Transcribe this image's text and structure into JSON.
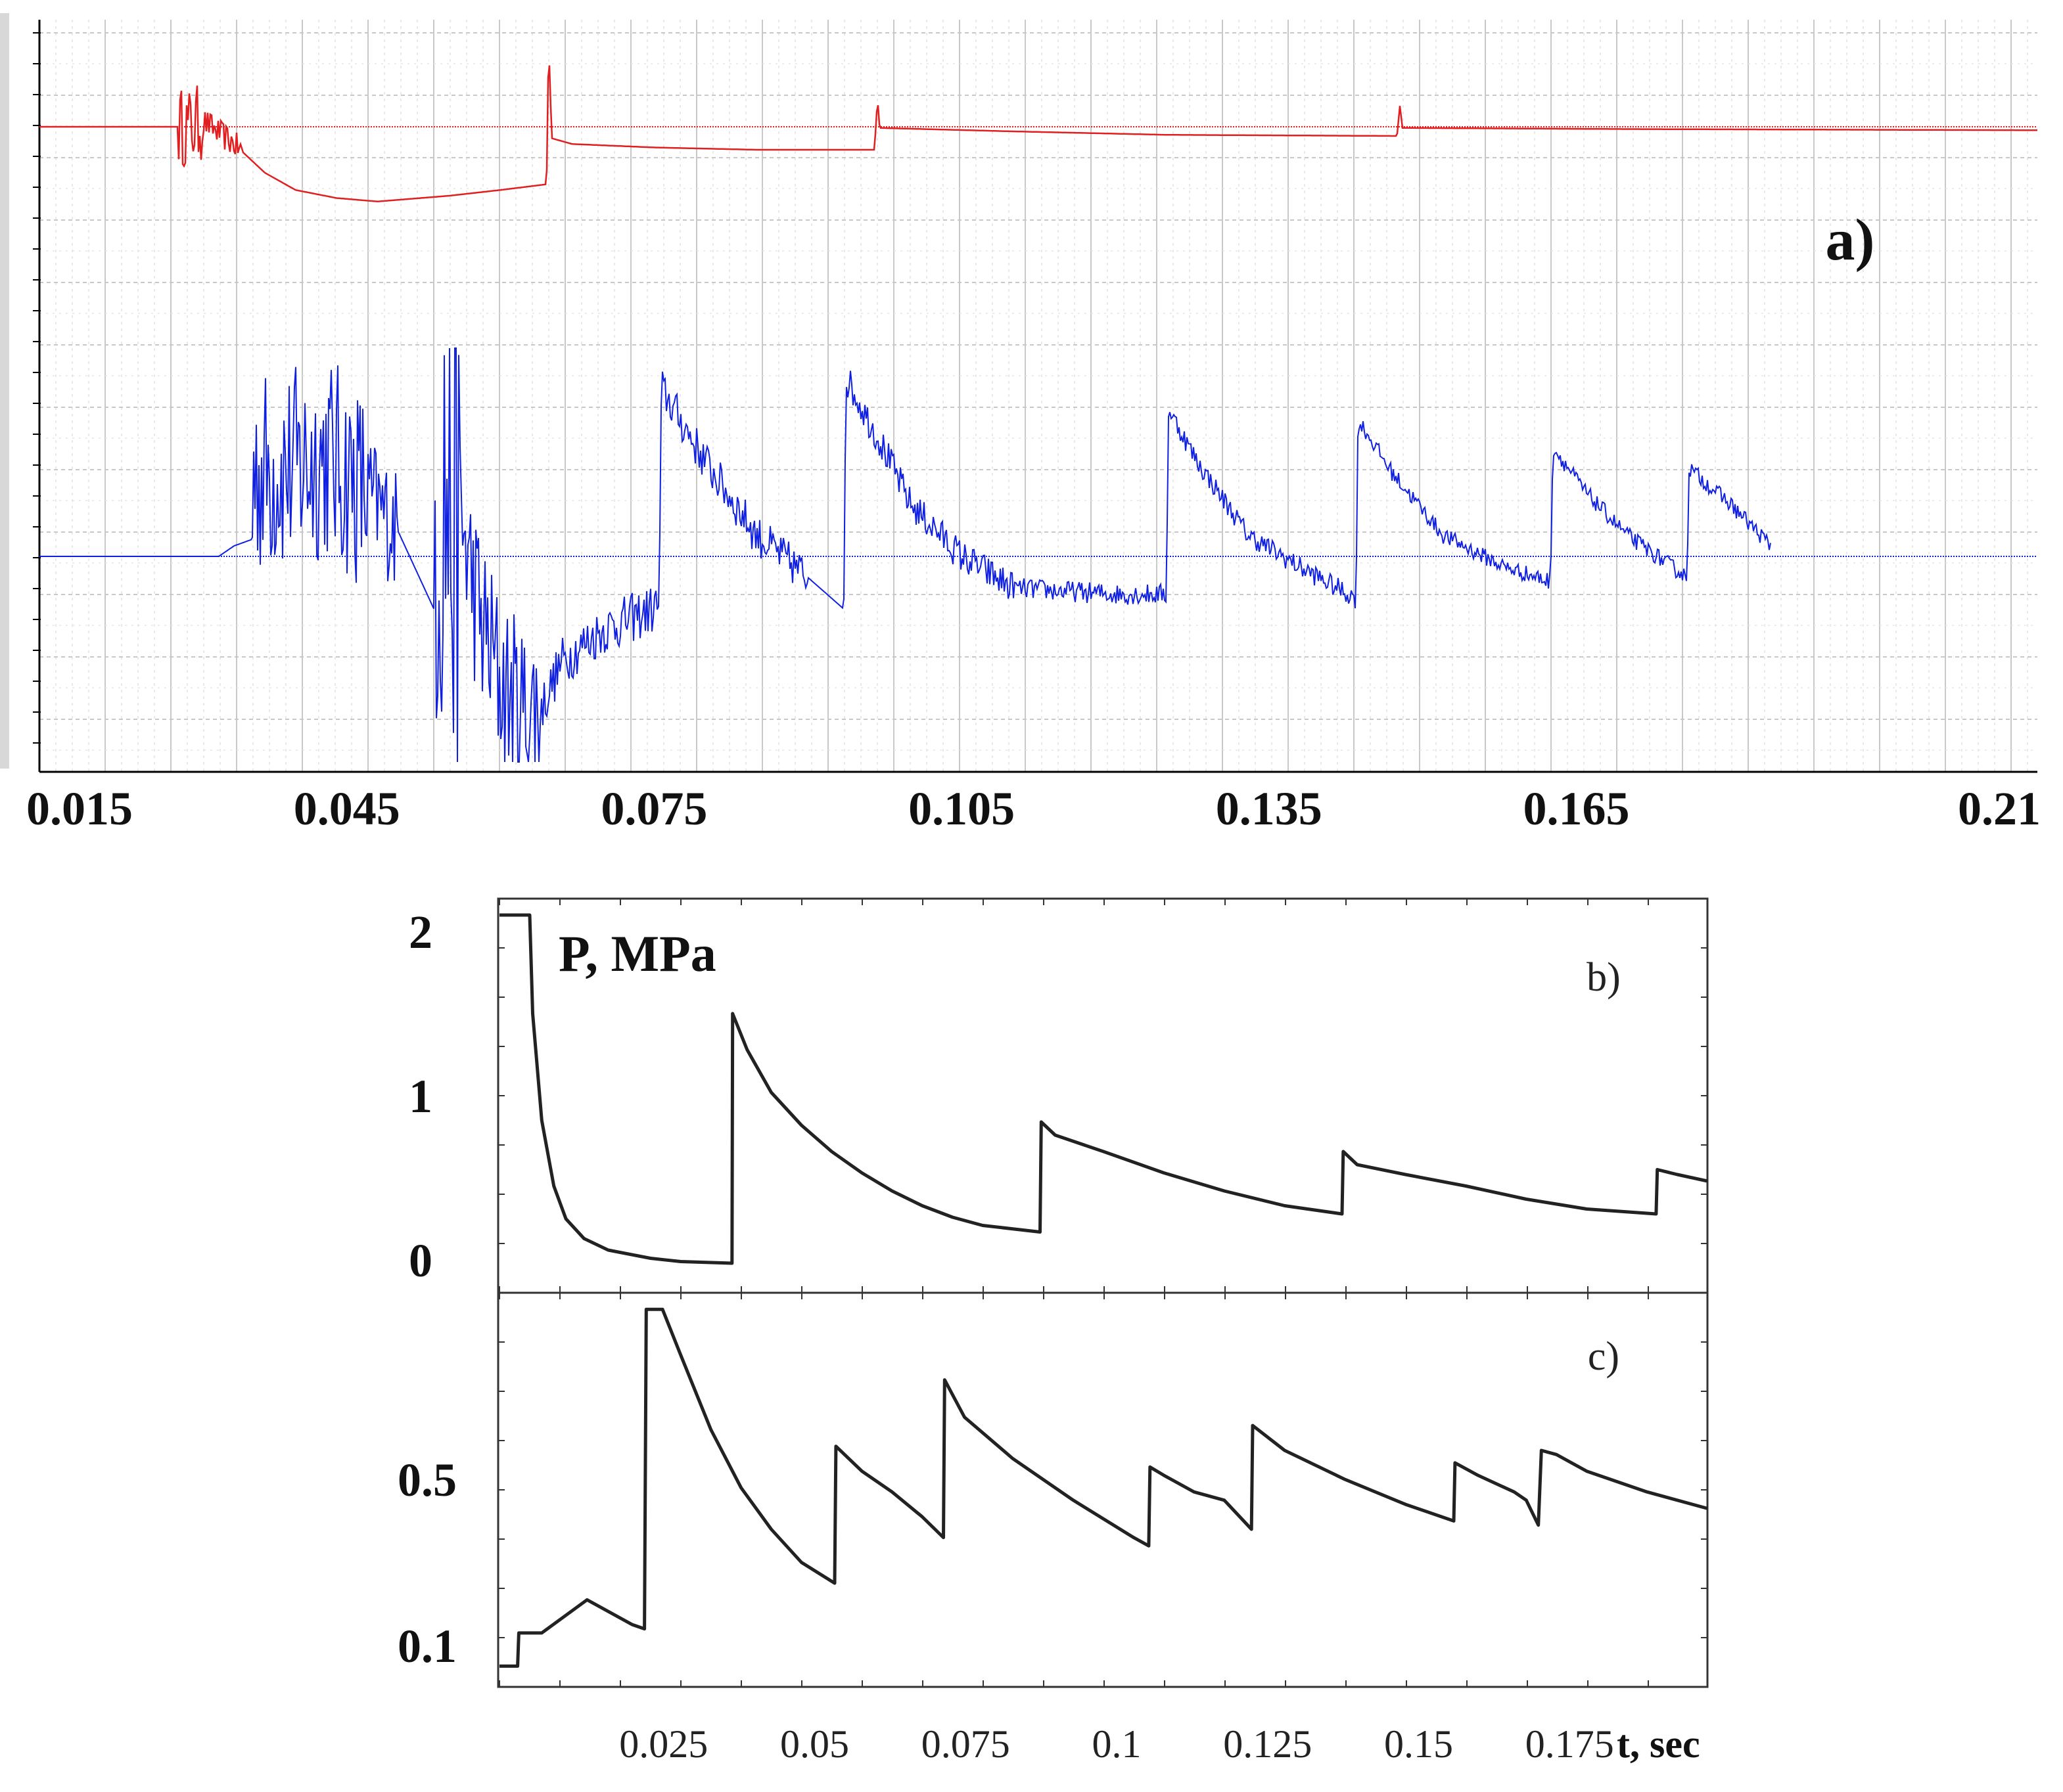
{
  "chart_data": [
    {
      "id": "a",
      "type": "line",
      "label": "a)",
      "xlabel": "",
      "ylabel": "",
      "xlim": [
        0.015,
        0.21
      ],
      "x_ticks": [
        "0.015",
        "0.045",
        "0.075",
        "0.105",
        "0.135",
        "0.165",
        "0.21"
      ],
      "x_tick_values": [
        0.015,
        0.045,
        0.075,
        0.105,
        0.135,
        0.165,
        0.21
      ],
      "grid": true,
      "colors": {
        "top": "#e02020",
        "bottom": "#1020e0",
        "grid": "#c8c8c8"
      },
      "series": [
        {
          "name": "top",
          "baseline": 0,
          "ylim": [
            -0.7,
            1.0
          ],
          "points": [
            [
              0.015,
              0
            ],
            [
              0.03,
              0
            ],
            [
              0.031,
              0.05
            ],
            [
              0.034,
              -0.15
            ],
            [
              0.037,
              -0.4
            ],
            [
              0.04,
              -0.55
            ],
            [
              0.044,
              -0.62
            ],
            [
              0.048,
              -0.65
            ],
            [
              0.055,
              -0.6
            ],
            [
              0.06,
              -0.55
            ],
            [
              0.0645,
              -0.5
            ],
            [
              0.0647,
              0.75
            ],
            [
              0.065,
              -0.1
            ],
            [
              0.067,
              -0.15
            ],
            [
              0.075,
              -0.18
            ],
            [
              0.085,
              -0.2
            ],
            [
              0.0965,
              -0.2
            ],
            [
              0.0968,
              0.25
            ],
            [
              0.097,
              -0.01
            ],
            [
              0.11,
              -0.04
            ],
            [
              0.125,
              -0.07
            ],
            [
              0.1475,
              -0.08
            ],
            [
              0.1478,
              0.2
            ],
            [
              0.148,
              -0.01
            ],
            [
              0.17,
              -0.02
            ],
            [
              0.21,
              -0.03
            ]
          ],
          "noise_ranges": [
            [
              0.0285,
              0.031,
              0.35
            ],
            [
              0.031,
              0.035,
              0.12
            ]
          ]
        },
        {
          "name": "bottom",
          "baseline": 0,
          "ylim": [
            -1.0,
            1.0
          ],
          "points": [
            [
              0.015,
              0
            ],
            [
              0.0325,
              0
            ],
            [
              0.034,
              0.05
            ],
            [
              0.0357,
              0.08
            ],
            [
              0.0359,
              0.4
            ],
            [
              0.04,
              0.42
            ],
            [
              0.043,
              0.48
            ],
            [
              0.047,
              0.3
            ],
            [
              0.05,
              0.12
            ],
            [
              0.0535,
              -0.25
            ],
            [
              0.0537,
              0.4
            ],
            [
              0.056,
              0.2
            ],
            [
              0.058,
              -0.3
            ],
            [
              0.06,
              -0.6
            ],
            [
              0.062,
              -0.75
            ],
            [
              0.064,
              -0.72
            ],
            [
              0.066,
              -0.5
            ],
            [
              0.07,
              -0.35
            ],
            [
              0.075,
              -0.25
            ],
            [
              0.0755,
              -0.22
            ],
            [
              0.0757,
              0.8
            ],
            [
              0.08,
              0.45
            ],
            [
              0.085,
              0.1
            ],
            [
              0.09,
              -0.1
            ],
            [
              0.0935,
              -0.25
            ],
            [
              0.0937,
              0.85
            ],
            [
              0.097,
              0.55
            ],
            [
              0.1,
              0.25
            ],
            [
              0.105,
              0.0
            ],
            [
              0.11,
              -0.15
            ],
            [
              0.12,
              -0.18
            ],
            [
              0.125,
              -0.18
            ],
            [
              0.1252,
              0.7
            ],
            [
              0.128,
              0.45
            ],
            [
              0.133,
              0.1
            ],
            [
              0.138,
              -0.05
            ],
            [
              0.1435,
              -0.2
            ],
            [
              0.1437,
              0.65
            ],
            [
              0.147,
              0.4
            ],
            [
              0.152,
              0.1
            ],
            [
              0.158,
              -0.05
            ],
            [
              0.1625,
              -0.12
            ],
            [
              0.1627,
              0.52
            ],
            [
              0.166,
              0.3
            ],
            [
              0.17,
              0.1
            ],
            [
              0.1758,
              -0.1
            ],
            [
              0.176,
              0.42
            ],
            [
              0.18,
              0.25
            ],
            [
              0.184,
              0.05
            ]
          ],
          "noise_ranges": [
            [
              0.0357,
              0.047,
              0.5
            ],
            [
              0.047,
              0.05,
              0.3
            ],
            [
              0.0535,
              0.056,
              1.4
            ],
            [
              0.056,
              0.064,
              0.45
            ],
            [
              0.064,
              0.0755,
              0.12
            ],
            [
              0.0755,
              0.09,
              0.1
            ],
            [
              0.0935,
              0.11,
              0.08
            ],
            [
              0.11,
              0.125,
              0.05
            ],
            [
              0.125,
              0.1435,
              0.05
            ],
            [
              0.1435,
              0.1625,
              0.04
            ],
            [
              0.1625,
              0.184,
              0.04
            ]
          ]
        }
      ]
    },
    {
      "id": "b",
      "type": "line",
      "label": "b)",
      "ylabel": "P, MPa",
      "xlim": [
        0,
        0.2
      ],
      "ylim": [
        -0.2,
        2.2
      ],
      "y_ticks": [
        "2",
        "1",
        "0"
      ],
      "y_tick_values": [
        2,
        1,
        0
      ],
      "grid": false,
      "series": [
        {
          "name": "P",
          "points": [
            [
              0,
              2.1
            ],
            [
              0.005,
              2.1
            ],
            [
              0.0055,
              1.5
            ],
            [
              0.007,
              0.85
            ],
            [
              0.009,
              0.45
            ],
            [
              0.011,
              0.25
            ],
            [
              0.014,
              0.13
            ],
            [
              0.018,
              0.06
            ],
            [
              0.025,
              0.01
            ],
            [
              0.03,
              -0.01
            ],
            [
              0.0385,
              -0.02
            ],
            [
              0.0386,
              1.5
            ],
            [
              0.041,
              1.28
            ],
            [
              0.045,
              1.02
            ],
            [
              0.05,
              0.82
            ],
            [
              0.055,
              0.66
            ],
            [
              0.06,
              0.53
            ],
            [
              0.065,
              0.42
            ],
            [
              0.07,
              0.33
            ],
            [
              0.075,
              0.26
            ],
            [
              0.08,
              0.21
            ],
            [
              0.0895,
              0.17
            ],
            [
              0.0897,
              0.84
            ],
            [
              0.092,
              0.76
            ],
            [
              0.1,
              0.66
            ],
            [
              0.11,
              0.53
            ],
            [
              0.12,
              0.42
            ],
            [
              0.13,
              0.33
            ],
            [
              0.1395,
              0.28
            ],
            [
              0.1397,
              0.66
            ],
            [
              0.142,
              0.58
            ],
            [
              0.15,
              0.52
            ],
            [
              0.16,
              0.45
            ],
            [
              0.17,
              0.37
            ],
            [
              0.18,
              0.31
            ],
            [
              0.1915,
              0.28
            ],
            [
              0.1917,
              0.55
            ],
            [
              0.195,
              0.52
            ],
            [
              0.2,
              0.48
            ]
          ]
        }
      ]
    },
    {
      "id": "c",
      "type": "line",
      "label": "c)",
      "xlabel": "t, sec",
      "ylim": [
        0.0,
        0.95
      ],
      "y_ticks": [
        "0.5",
        "0.1"
      ],
      "y_tick_values": [
        0.5,
        0.1
      ],
      "x_ticks": [
        "0.025",
        "0.05",
        "0.075",
        "0.1",
        "0.125",
        "0.15",
        "0.175"
      ],
      "x_tick_values": [
        0.025,
        0.05,
        0.075,
        0.1,
        0.125,
        0.15,
        0.175
      ],
      "grid": false,
      "series": [
        {
          "name": "P",
          "points": [
            [
              0,
              0.05
            ],
            [
              0.003,
              0.05
            ],
            [
              0.0032,
              0.13
            ],
            [
              0.007,
              0.13
            ],
            [
              0.0145,
              0.21
            ],
            [
              0.022,
              0.15
            ],
            [
              0.024,
              0.14
            ],
            [
              0.0243,
              0.91
            ],
            [
              0.027,
              0.91
            ],
            [
              0.03,
              0.8
            ],
            [
              0.035,
              0.62
            ],
            [
              0.04,
              0.48
            ],
            [
              0.045,
              0.38
            ],
            [
              0.05,
              0.3
            ],
            [
              0.0555,
              0.25
            ],
            [
              0.0557,
              0.58
            ],
            [
              0.06,
              0.52
            ],
            [
              0.065,
              0.47
            ],
            [
              0.07,
              0.41
            ],
            [
              0.0735,
              0.36
            ],
            [
              0.0737,
              0.74
            ],
            [
              0.077,
              0.65
            ],
            [
              0.085,
              0.55
            ],
            [
              0.095,
              0.45
            ],
            [
              0.105,
              0.36
            ],
            [
              0.1075,
              0.34
            ],
            [
              0.1077,
              0.53
            ],
            [
              0.11,
              0.51
            ],
            [
              0.115,
              0.47
            ],
            [
              0.12,
              0.45
            ],
            [
              0.1245,
              0.38
            ],
            [
              0.1247,
              0.63
            ],
            [
              0.13,
              0.57
            ],
            [
              0.14,
              0.5
            ],
            [
              0.15,
              0.44
            ],
            [
              0.158,
              0.4
            ],
            [
              0.1582,
              0.54
            ],
            [
              0.162,
              0.51
            ],
            [
              0.168,
              0.47
            ],
            [
              0.17,
              0.45
            ],
            [
              0.172,
              0.39
            ],
            [
              0.1725,
              0.57
            ],
            [
              0.175,
              0.56
            ],
            [
              0.18,
              0.52
            ],
            [
              0.19,
              0.47
            ],
            [
              0.2,
              0.43
            ]
          ]
        }
      ]
    }
  ]
}
